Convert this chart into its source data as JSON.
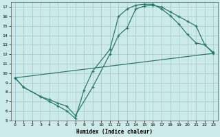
{
  "xlabel": "Humidex (Indice chaleur)",
  "bg_color": "#cceaea",
  "grid_color": "#aacccc",
  "line_color": "#2a7a6a",
  "xlim": [
    -0.5,
    23.5
  ],
  "ylim": [
    5,
    17.5
  ],
  "xticks": [
    0,
    1,
    2,
    3,
    4,
    5,
    6,
    7,
    8,
    9,
    10,
    11,
    12,
    13,
    14,
    15,
    16,
    17,
    18,
    19,
    20,
    21,
    22,
    23
  ],
  "yticks": [
    5,
    6,
    7,
    8,
    9,
    10,
    11,
    12,
    13,
    14,
    15,
    16,
    17
  ],
  "curve1_x": [
    0,
    1,
    3,
    4,
    5,
    6,
    7,
    8,
    9,
    11,
    12,
    13,
    14,
    15,
    16,
    17,
    18,
    19,
    20,
    21,
    22,
    23
  ],
  "curve1_y": [
    9.5,
    8.5,
    7.5,
    7.0,
    6.5,
    6.0,
    5.2,
    8.2,
    10.2,
    12.5,
    16.0,
    16.8,
    17.2,
    17.3,
    17.3,
    16.8,
    16.1,
    15.2,
    14.1,
    13.2,
    13.0,
    12.1
  ],
  "curve2_x": [
    0,
    1,
    3,
    4,
    5,
    6,
    7,
    9,
    11,
    12,
    13,
    14,
    15,
    16,
    17,
    18,
    19,
    20,
    21,
    22,
    23
  ],
  "curve2_y": [
    9.5,
    8.5,
    7.5,
    7.2,
    6.8,
    6.5,
    5.5,
    8.5,
    12.0,
    14.0,
    14.8,
    16.8,
    17.1,
    17.2,
    17.0,
    16.5,
    16.0,
    15.5,
    15.0,
    13.0,
    12.2
  ],
  "curve3_x": [
    0,
    23
  ],
  "curve3_y": [
    9.5,
    12.1
  ]
}
